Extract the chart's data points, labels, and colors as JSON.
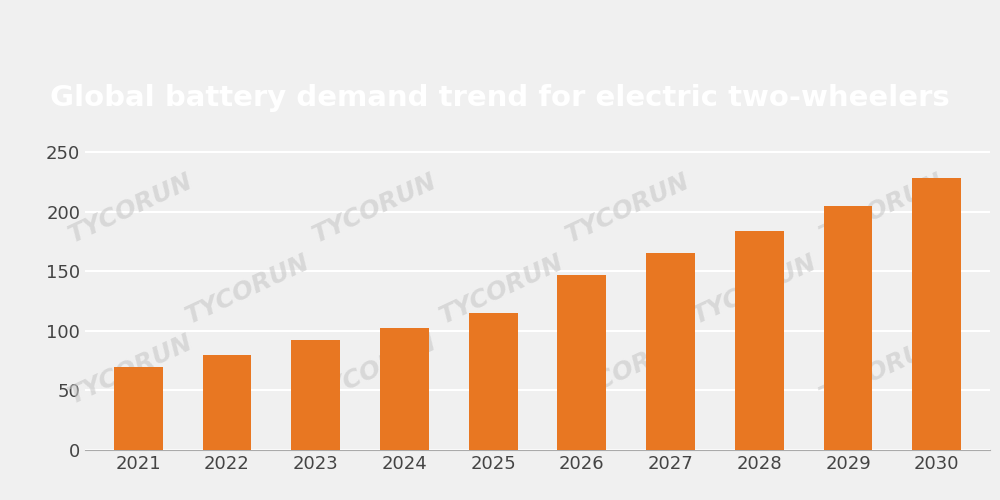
{
  "title": "Global battery demand trend for electric two-wheelers",
  "title_fontsize": 21,
  "title_bg_color": "#333333",
  "title_text_color": "#ffffff",
  "categories": [
    "2021",
    "2022",
    "2023",
    "2024",
    "2025",
    "2026",
    "2027",
    "2028",
    "2029",
    "2030"
  ],
  "values": [
    70,
    80,
    92,
    102,
    115,
    147,
    165,
    184,
    205,
    228
  ],
  "bar_color": "#E87722",
  "yticks": [
    0,
    50,
    100,
    150,
    200,
    250
  ],
  "ylim": [
    0,
    260
  ],
  "watermark_text": "TYCORUN",
  "watermark_color": "#c8c8c8",
  "watermark_fontsize": 18,
  "axis_bg_color": "#f0f0f0",
  "tick_fontsize": 13,
  "top_margin_color": "#f0f0f0"
}
